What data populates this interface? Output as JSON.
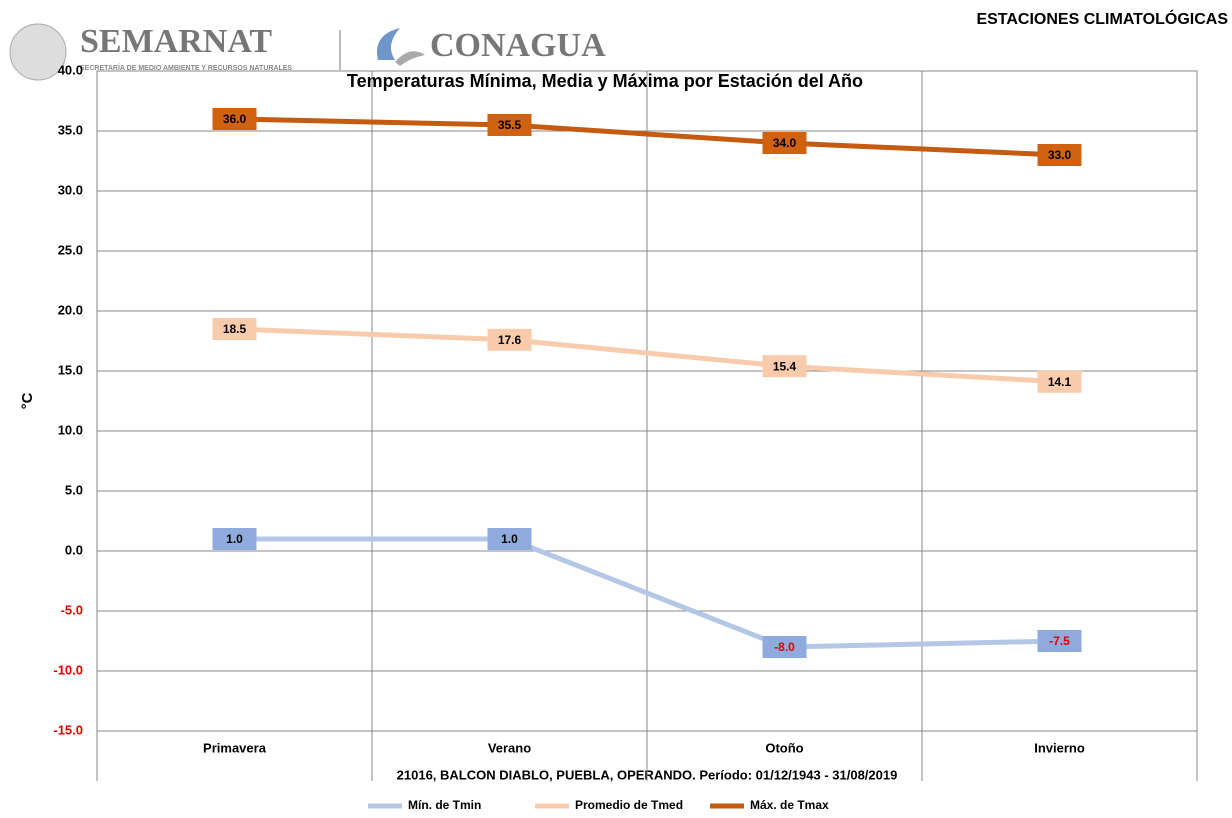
{
  "header": {
    "left_logo": "SEMARNAT",
    "left_logo_sub": "SECRETARÍA DE MEDIO AMBIENTE Y RECURSOS NATURALES",
    "right_logo": "CONAGUA",
    "section": "ESTACIONES CLIMATOLÓGICAS"
  },
  "chart_data": {
    "type": "line",
    "title": "Temperaturas Mínima, Media y Máxima por Estación del Año",
    "x_label": "21016, BALCON DIABLO, PUEBLA, OPERANDO. Período: 01/12/1943 - 31/08/2019",
    "y_label": "°C",
    "categories": [
      "Primavera",
      "Verano",
      "Otoño",
      "Invierno"
    ],
    "series": [
      {
        "name": "Mín. de Tmin",
        "color": "#b4c7e7",
        "label_fill": "#8faadc",
        "values": [
          1.0,
          1.0,
          -8.0,
          -7.5
        ],
        "value_labels": [
          "1.0",
          "1.0",
          "-8.0",
          "-7.5"
        ]
      },
      {
        "name": "Promedio de Tmed",
        "color": "#f8cbad",
        "label_fill": "#f8cbad",
        "values": [
          18.5,
          17.6,
          15.4,
          14.1
        ],
        "value_labels": [
          "18.5",
          "17.6",
          "15.4",
          "14.1"
        ]
      },
      {
        "name": "Máx. de Tmax",
        "color": "#c55a11",
        "label_fill": "#d0620f",
        "values": [
          36.0,
          35.5,
          34.0,
          33.0
        ],
        "value_labels": [
          "36.0",
          "35.5",
          "34.0",
          "33.0"
        ]
      }
    ],
    "ylim": [
      -15,
      40
    ],
    "yticks": [
      {
        "value": -15,
        "label": "-15.0"
      },
      {
        "value": -10,
        "label": "-10.0"
      },
      {
        "value": -5,
        "label": "-5.0"
      },
      {
        "value": 0,
        "label": "0.0"
      },
      {
        "value": 5,
        "label": "5.0"
      },
      {
        "value": 10,
        "label": "10.0"
      },
      {
        "value": 15,
        "label": "15.0"
      },
      {
        "value": 20,
        "label": "20.0"
      },
      {
        "value": 25,
        "label": "25.0"
      },
      {
        "value": 30,
        "label": "30.0"
      },
      {
        "value": 35,
        "label": "35.0"
      },
      {
        "value": 40,
        "label": "40.0"
      }
    ],
    "grid": true,
    "legend": "bottom"
  }
}
